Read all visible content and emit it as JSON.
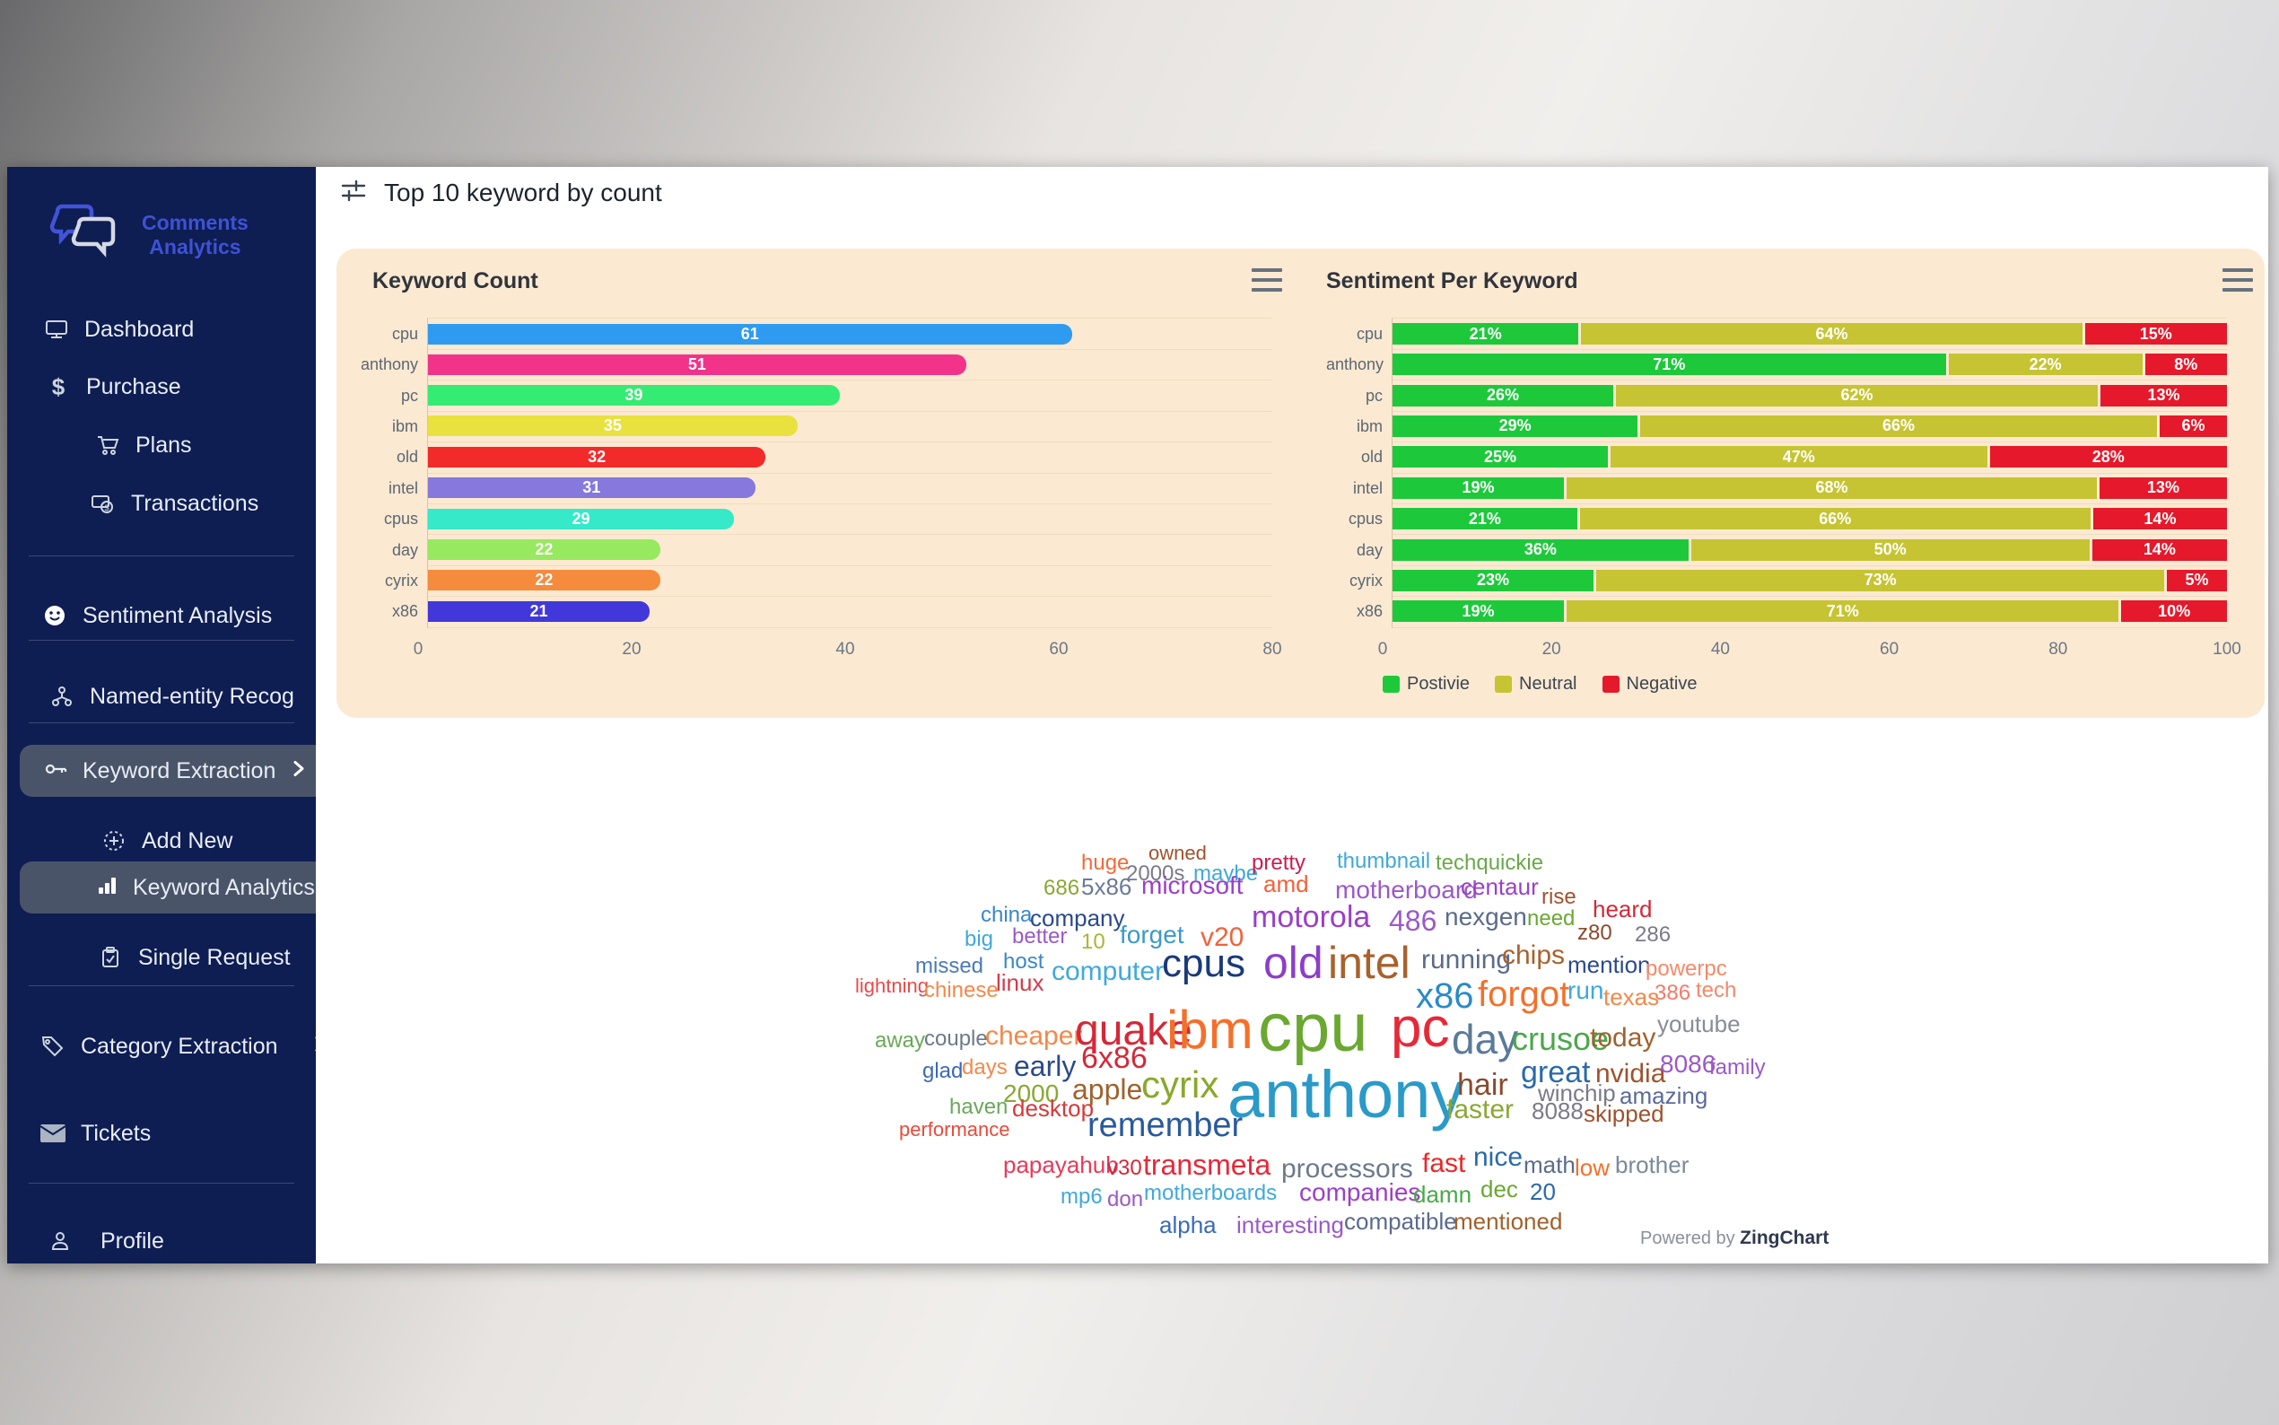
{
  "sidebar": {
    "brand_line1": "Comments",
    "brand_line2": "Analytics",
    "items": {
      "dashboard": "Dashboard",
      "purchase": "Purchase",
      "plans": "Plans",
      "transactions": "Transactions",
      "sentiment_analysis": "Sentiment Analysis",
      "named_entity": "Named-entity Recog",
      "keyword_extraction": "Keyword Extraction",
      "add_new": "Add New",
      "keyword_analytics": "Keyword Analytics",
      "single_request": "Single Request",
      "category_extraction": "Category Extraction",
      "tickets": "Tickets",
      "profile": "Profile"
    }
  },
  "header": {
    "title": "Top 10 keyword by count"
  },
  "footer": {
    "powered_prefix": "Powered by ",
    "powered_brand": "ZingChart"
  },
  "chart_data": [
    {
      "type": "bar",
      "orientation": "horizontal",
      "title": "Keyword Count",
      "xlabel": "",
      "ylabel": "",
      "categories": [
        "cpu",
        "anthony",
        "pc",
        "ibm",
        "old",
        "intel",
        "cpus",
        "day",
        "cyrix",
        "x86"
      ],
      "values": [
        61,
        51,
        39,
        35,
        32,
        31,
        29,
        22,
        22,
        21
      ],
      "bar_colors": [
        "#2f9bf0",
        "#f1338a",
        "#35ec73",
        "#e9e13e",
        "#f32a2a",
        "#8678dd",
        "#35e9c9",
        "#97e95f",
        "#f58b3d",
        "#4238da"
      ],
      "xlim": [
        0,
        80
      ],
      "xticks": [
        0,
        20,
        40,
        60,
        80
      ],
      "grid": "row-separators",
      "panel_background": "#fce9d1"
    },
    {
      "type": "bar",
      "subtype": "stacked",
      "orientation": "horizontal",
      "title": "Sentiment Per Keyword",
      "xlabel": "",
      "ylabel": "",
      "categories": [
        "cpu",
        "anthony",
        "pc",
        "ibm",
        "old",
        "intel",
        "cpus",
        "day",
        "cyrix",
        "x86"
      ],
      "series": [
        {
          "name": "Postivie",
          "color": "#1dc93b",
          "values": [
            21,
            71,
            26,
            29,
            25,
            19,
            21,
            36,
            23,
            19
          ]
        },
        {
          "name": "Neutral",
          "color": "#c6c433",
          "values": [
            64,
            22,
            62,
            66,
            47,
            68,
            66,
            50,
            73,
            71
          ]
        },
        {
          "name": "Negative",
          "color": "#e5192b",
          "values": [
            15,
            8,
            13,
            6,
            28,
            13,
            14,
            14,
            5,
            10
          ]
        }
      ],
      "value_suffix": "%",
      "xlim": [
        0,
        100
      ],
      "xticks": [
        0,
        20,
        40,
        60,
        80,
        100
      ],
      "legend_position": "bottom",
      "panel_background": "#fce9d1"
    },
    {
      "type": "other",
      "subtype": "wordcloud",
      "words": [
        [
          "owned",
          330,
          15,
          22,
          "#a0522d"
        ],
        [
          "huge",
          255,
          25,
          24,
          "#f4693c"
        ],
        [
          "2000s",
          305,
          37,
          24,
          "#7a7a8a"
        ],
        [
          "maybe",
          380,
          37,
          24,
          "#3fa9dc"
        ],
        [
          "pretty",
          445,
          25,
          24,
          "#c81e50"
        ],
        [
          "thumbnail",
          540,
          23,
          24,
          "#3fa9dc"
        ],
        [
          "techquickie",
          650,
          25,
          24,
          "#6aa84a"
        ],
        [
          "686",
          213,
          53,
          24,
          "#8aa832"
        ],
        [
          "5x86",
          255,
          50,
          26,
          "#6b7a99"
        ],
        [
          "microsoft",
          322,
          48,
          28,
          "#9b3fc8"
        ],
        [
          "amd",
          458,
          47,
          26,
          "#f4603a"
        ],
        [
          "motherboard",
          538,
          53,
          28,
          "#9b59c8"
        ],
        [
          "centaur",
          678,
          50,
          26,
          "#9b3fc8"
        ],
        [
          "rise",
          768,
          63,
          24,
          "#a0522d"
        ],
        [
          "china",
          143,
          83,
          24,
          "#3a87c8"
        ],
        [
          "company",
          198,
          85,
          26,
          "#2b4a8b"
        ],
        [
          "motorola",
          445,
          80,
          34,
          "#9b3fc8"
        ],
        [
          "486",
          598,
          85,
          32,
          "#9b59c8"
        ],
        [
          "nexgen",
          660,
          83,
          28,
          "#5b6b8b"
        ],
        [
          "need",
          752,
          87,
          24,
          "#6aa832"
        ],
        [
          "heard",
          825,
          75,
          26,
          "#d42838"
        ],
        [
          "z80",
          808,
          103,
          24,
          "#8b4a2d"
        ],
        [
          "286",
          872,
          105,
          24,
          "#7a7a8a"
        ],
        [
          "big",
          125,
          110,
          24,
          "#3fa9dc"
        ],
        [
          "better",
          178,
          107,
          24,
          "#9b59c8"
        ],
        [
          "10",
          255,
          113,
          24,
          "#a8b832"
        ],
        [
          "forget",
          298,
          103,
          28,
          "#3a9ac8"
        ],
        [
          "v20",
          388,
          105,
          30,
          "#f4603a"
        ],
        [
          "missed",
          70,
          140,
          24,
          "#4a7ab8"
        ],
        [
          "host",
          168,
          135,
          24,
          "#3a87c8"
        ],
        [
          "computer",
          222,
          143,
          30,
          "#3fa9dc"
        ],
        [
          "cpus",
          345,
          127,
          44,
          "#1a3a7a"
        ],
        [
          "old",
          458,
          123,
          50,
          "#8b3fc8"
        ],
        [
          "intel",
          530,
          123,
          50,
          "#a8622d"
        ],
        [
          "running",
          634,
          130,
          30,
          "#5b6b8b"
        ],
        [
          "chips",
          724,
          125,
          30,
          "#a8622d"
        ],
        [
          "mention",
          797,
          137,
          26,
          "#2b4a8b"
        ],
        [
          "powerpc",
          884,
          143,
          24,
          "#f48a6a"
        ],
        [
          "lightning",
          3,
          163,
          22,
          "#e84a4a"
        ],
        [
          "chinese",
          80,
          167,
          24,
          "#f4884a"
        ],
        [
          "linux",
          160,
          157,
          26,
          "#d43a4a"
        ],
        [
          "x86",
          628,
          165,
          40,
          "#2a8ac8"
        ],
        [
          "forgot",
          697,
          163,
          40,
          "#f4702a"
        ],
        [
          "run",
          797,
          165,
          28,
          "#3fa9dc"
        ],
        [
          "texas",
          837,
          173,
          26,
          "#f4884a"
        ],
        [
          "386",
          894,
          170,
          24,
          "#f4796a"
        ],
        [
          "tech",
          940,
          167,
          24,
          "#f4886a"
        ],
        [
          "away",
          25,
          223,
          24,
          "#6aa85a"
        ],
        [
          "couple",
          80,
          221,
          24,
          "#6b7a8a"
        ],
        [
          "cheaper",
          148,
          215,
          30,
          "#f4884a"
        ],
        [
          "quake",
          248,
          200,
          48,
          "#d42838"
        ],
        [
          "ibm",
          350,
          193,
          60,
          "#f4702a"
        ],
        [
          "cpu",
          452,
          183,
          76,
          "#6aa832"
        ],
        [
          "pc",
          600,
          190,
          62,
          "#e82838"
        ],
        [
          "day",
          668,
          210,
          46,
          "#5b7a99"
        ],
        [
          "crusoe",
          735,
          215,
          36,
          "#4aa84a"
        ],
        [
          "today",
          822,
          217,
          30,
          "#a0622d"
        ],
        [
          "youtube",
          897,
          203,
          26,
          "#8a8a9a"
        ],
        [
          "glad",
          78,
          257,
          24,
          "#3a6ab8"
        ],
        [
          "days",
          122,
          253,
          24,
          "#f4884a"
        ],
        [
          "early",
          180,
          247,
          32,
          "#2b4a8b"
        ],
        [
          "6x86",
          255,
          237,
          34,
          "#d42838"
        ],
        [
          "great",
          745,
          253,
          34,
          "#2a6aa8"
        ],
        [
          "nvidia",
          828,
          257,
          30,
          "#a0522d"
        ],
        [
          "8086",
          900,
          247,
          28,
          "#9b59c8"
        ],
        [
          "family",
          955,
          253,
          24,
          "#9b59c8"
        ],
        [
          "2000",
          168,
          280,
          28,
          "#8aa832"
        ],
        [
          "apple",
          245,
          273,
          32,
          "#a0622d"
        ],
        [
          "cyrix",
          322,
          263,
          42,
          "#8aa82a"
        ],
        [
          "anthony",
          418,
          258,
          74,
          "#2a9ac8"
        ],
        [
          "hair",
          674,
          267,
          34,
          "#8b4a2d"
        ],
        [
          "winchip",
          764,
          280,
          26,
          "#7a7a8a"
        ],
        [
          "amazing",
          855,
          283,
          26,
          "#5b6b99"
        ],
        [
          "haven",
          108,
          297,
          24,
          "#6aa85a"
        ],
        [
          "desktop",
          178,
          297,
          26,
          "#d43a3a"
        ],
        [
          "faster",
          662,
          297,
          30,
          "#8aa832"
        ],
        [
          "8088",
          757,
          300,
          26,
          "#7a7a8a"
        ],
        [
          "skipped",
          815,
          303,
          26,
          "#a0522d"
        ],
        [
          "performance",
          52,
          323,
          22,
          "#e84a3a"
        ],
        [
          "remember",
          262,
          310,
          38,
          "#2a5a9b"
        ],
        [
          "papayahub",
          168,
          360,
          26,
          "#e83a5a"
        ],
        [
          "v30",
          284,
          365,
          24,
          "#d42838"
        ],
        [
          "transmeta",
          324,
          357,
          32,
          "#e82838"
        ],
        [
          "processors",
          478,
          363,
          30,
          "#6b7a8a"
        ],
        [
          "fast",
          635,
          357,
          30,
          "#e82828"
        ],
        [
          "nice",
          692,
          350,
          30,
          "#2a6aa8"
        ],
        [
          "math",
          748,
          360,
          26,
          "#5b6b8b"
        ],
        [
          "low",
          805,
          363,
          26,
          "#f4702a"
        ],
        [
          "brother",
          850,
          360,
          26,
          "#7a8a9a"
        ],
        [
          "mp6",
          232,
          397,
          24,
          "#3fa9dc"
        ],
        [
          "don",
          284,
          400,
          24,
          "#9b59c8"
        ],
        [
          "motherboards",
          325,
          393,
          24,
          "#3fa9dc"
        ],
        [
          "companies",
          498,
          390,
          28,
          "#9b3fc8"
        ],
        [
          "damn",
          625,
          393,
          26,
          "#4aa84a"
        ],
        [
          "dec",
          700,
          387,
          26,
          "#6aa832"
        ],
        [
          "20",
          755,
          390,
          26,
          "#2a6aa8"
        ],
        [
          "alpha",
          342,
          427,
          26,
          "#3a6ab8"
        ],
        [
          "interesting",
          428,
          427,
          26,
          "#9b59c8"
        ],
        [
          "compatible",
          548,
          423,
          26,
          "#5b6b8b"
        ],
        [
          "mentioned",
          670,
          423,
          26,
          "#a0622d"
        ]
      ]
    }
  ]
}
